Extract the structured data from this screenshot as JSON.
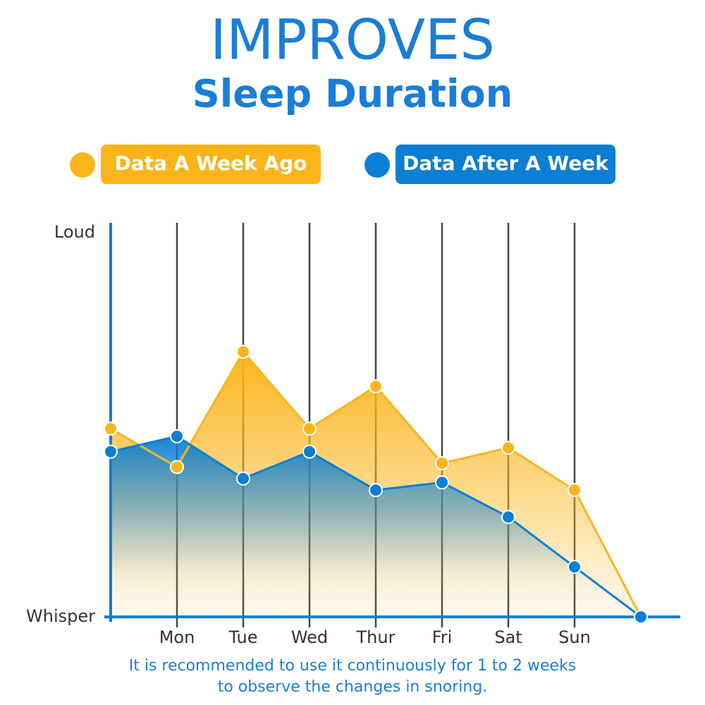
{
  "chart_data": {
    "type": "area-line",
    "title": "IMPROVES",
    "subtitle": "Sleep Duration",
    "categories": [
      null,
      "Mon",
      "Tue",
      "Wed",
      "Thur",
      "Fri",
      "Sat",
      "Sun",
      null
    ],
    "series": [
      {
        "name": "Data A Week Ago",
        "color": "#fbb51b",
        "values": [
          49,
          39,
          69,
          49,
          60,
          40,
          44,
          33,
          0
        ]
      },
      {
        "name": "Data After A Week",
        "color": "#0a7fd4",
        "values": [
          43,
          47,
          36,
          43,
          33,
          35,
          26,
          13,
          0
        ]
      }
    ],
    "ylim": [
      0,
      100
    ],
    "yticks": [
      {
        "value": 0,
        "label": "Whisper"
      },
      {
        "value": 100,
        "label": "Loud"
      }
    ],
    "footnote": [
      "It is recommended to use it continuously for 1 to 2 weeks",
      "to observe the changes in snoring."
    ]
  }
}
